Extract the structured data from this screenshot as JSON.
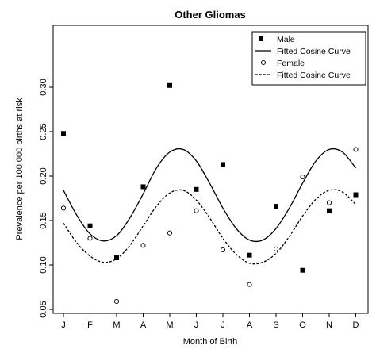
{
  "chart_data": {
    "type": "scatter",
    "title": "Other Gliomas",
    "xlabel": "Month of Birth",
    "ylabel": "Prevalence per 100,000 births at risk",
    "categories": [
      "J",
      "F",
      "M",
      "A",
      "M",
      "J",
      "J",
      "A",
      "S",
      "O",
      "N",
      "D"
    ],
    "ylim": [
      0.05,
      0.32
    ],
    "yticks": [
      0.05,
      0.1,
      0.15,
      0.2,
      0.25,
      0.3
    ],
    "ytick_labels": [
      "0.05",
      "0.10",
      "0.15",
      "0.20",
      "0.25",
      "0.30"
    ],
    "grid": false,
    "legend_position": "top-right",
    "series": [
      {
        "name": "Male",
        "marker": "filled-square",
        "values": [
          0.248,
          0.144,
          0.108,
          0.188,
          0.302,
          0.185,
          0.213,
          0.111,
          0.166,
          0.094,
          0.161,
          0.179
        ]
      },
      {
        "name": "Fitted Cosine Curve",
        "line_style": "solid",
        "x": [
          1,
          1.5,
          2,
          2.5,
          3,
          3.5,
          4,
          4.5,
          5,
          5.5,
          6,
          6.5,
          7,
          7.5,
          8,
          8.5,
          9,
          9.5,
          10,
          10.5,
          11,
          11.5,
          12
        ],
        "values": [
          0.184,
          0.156,
          0.135,
          0.127,
          0.133,
          0.153,
          0.18,
          0.209,
          0.227,
          0.23,
          0.217,
          0.192,
          0.164,
          0.141,
          0.128,
          0.128,
          0.141,
          0.164,
          0.192,
          0.217,
          0.23,
          0.227,
          0.209
        ]
      },
      {
        "name": "Female",
        "marker": "open-circle",
        "values": [
          0.164,
          0.13,
          0.059,
          0.122,
          0.136,
          0.161,
          0.117,
          0.078,
          0.118,
          0.199,
          0.17,
          0.23
        ]
      },
      {
        "name": "Fitted Cosine Curve",
        "line_style": "dashed",
        "x": [
          1,
          1.5,
          2,
          2.5,
          3,
          3.5,
          4,
          4.5,
          5,
          5.5,
          6,
          6.5,
          7,
          7.5,
          8,
          8.5,
          9,
          9.5,
          10,
          10.5,
          11,
          11.5,
          12
        ],
        "values": [
          0.147,
          0.125,
          0.11,
          0.103,
          0.107,
          0.122,
          0.144,
          0.166,
          0.181,
          0.184,
          0.173,
          0.153,
          0.13,
          0.112,
          0.102,
          0.103,
          0.113,
          0.132,
          0.155,
          0.174,
          0.184,
          0.182,
          0.168
        ]
      }
    ],
    "legend": [
      {
        "label": "Male",
        "symbol": "filled-square"
      },
      {
        "label": "Fitted Cosine Curve",
        "symbol": "solid-line"
      },
      {
        "label": "Female",
        "symbol": "open-circle"
      },
      {
        "label": "Fitted Cosine Curve",
        "symbol": "dashed-line"
      }
    ]
  }
}
